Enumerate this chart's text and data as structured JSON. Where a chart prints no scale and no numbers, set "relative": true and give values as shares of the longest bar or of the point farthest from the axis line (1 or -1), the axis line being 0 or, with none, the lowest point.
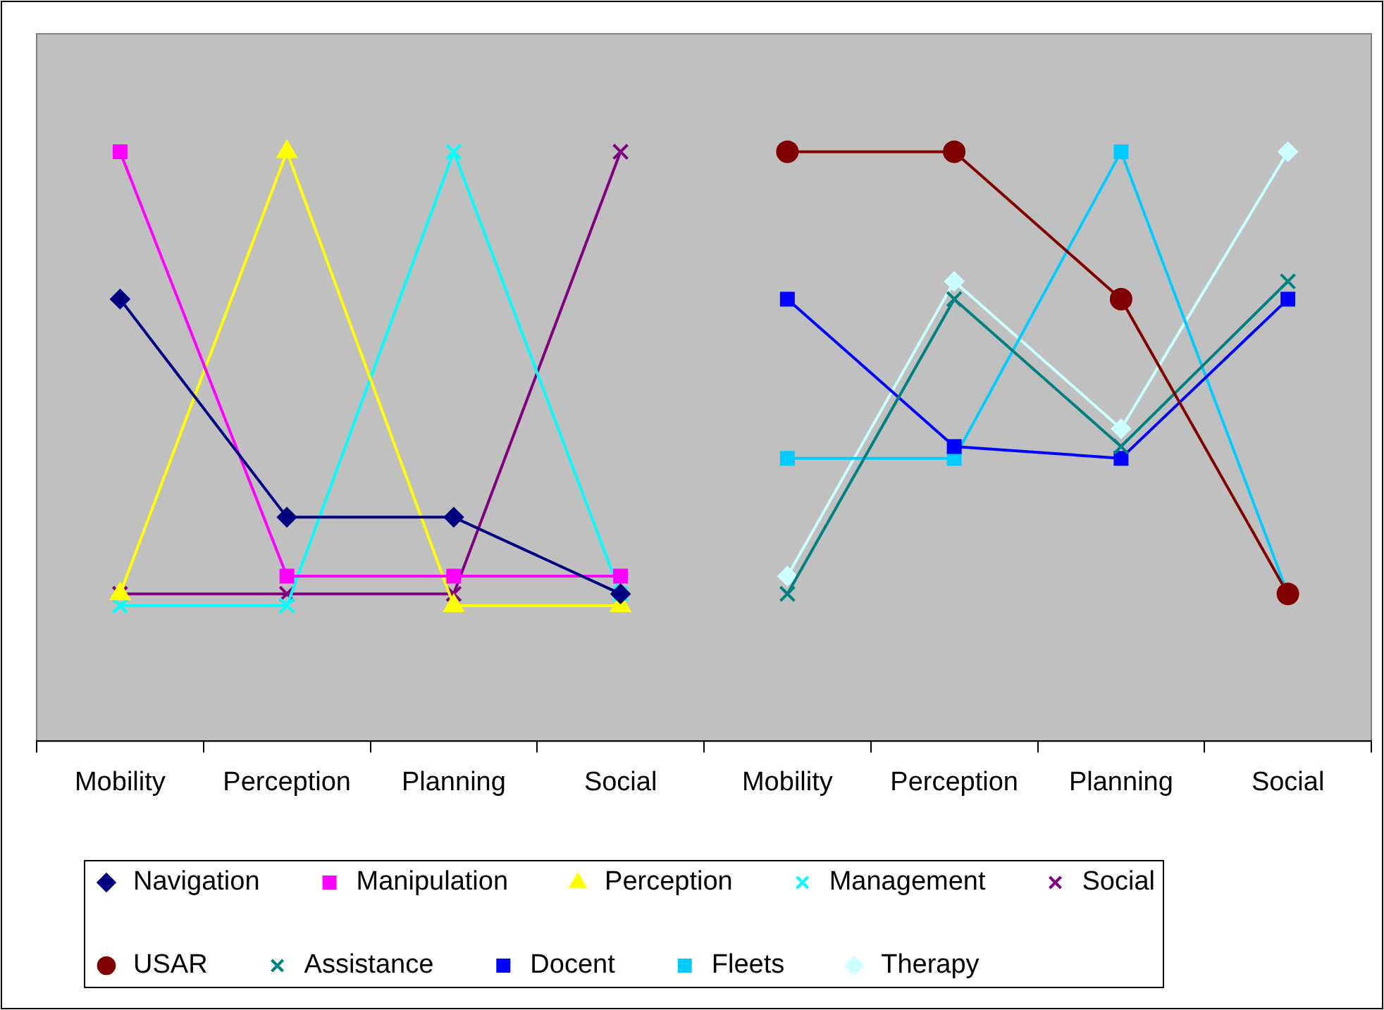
{
  "chart_data": {
    "type": "line",
    "relative": true,
    "categories": [
      "Mobility",
      "Perception",
      "Planning",
      "Social",
      "Mobility",
      "Perception",
      "Planning",
      "Social"
    ],
    "legend": "bottom",
    "grid": false,
    "series": [
      {
        "name": "Navigation",
        "color": "#000080",
        "marker": "diamond",
        "values": [
          0.75,
          0.38,
          0.38,
          0.25,
          null,
          null,
          null,
          null
        ]
      },
      {
        "name": "Manipulation",
        "color": "#ff00ff",
        "marker": "square",
        "values": [
          1,
          0.28,
          0.28,
          0.28,
          null,
          null,
          null,
          null
        ]
      },
      {
        "name": "Perception",
        "color": "#ffff00",
        "marker": "triangle",
        "values": [
          0.25,
          1,
          0.23,
          0.23,
          null,
          null,
          null,
          null
        ]
      },
      {
        "name": "Management",
        "color": "#00ffff",
        "marker": "cross",
        "values": [
          0.23,
          0.23,
          1,
          0.25,
          null,
          null,
          null,
          null
        ]
      },
      {
        "name": "Social",
        "color": "#800080",
        "marker": "cross",
        "values": [
          0.25,
          0.25,
          0.25,
          1,
          null,
          null,
          null,
          null
        ]
      },
      {
        "name": "USAR",
        "color": "#800000",
        "marker": "circle",
        "values": [
          null,
          null,
          null,
          null,
          1,
          1,
          0.75,
          0.25
        ]
      },
      {
        "name": "Assistance",
        "color": "#008080",
        "marker": "cross",
        "values": [
          null,
          null,
          null,
          null,
          0.25,
          0.75,
          0.5,
          0.78
        ]
      },
      {
        "name": "Docent",
        "color": "#0000ff",
        "marker": "square",
        "values": [
          null,
          null,
          null,
          null,
          0.75,
          0.5,
          0.48,
          0.75
        ]
      },
      {
        "name": "Fleets",
        "color": "#00ccff",
        "marker": "square",
        "values": [
          null,
          null,
          null,
          null,
          0.48,
          0.48,
          1,
          0.25
        ]
      },
      {
        "name": "Therapy",
        "color": "#ccffff",
        "marker": "diamond",
        "values": [
          null,
          null,
          null,
          null,
          0.28,
          0.78,
          0.53,
          1
        ]
      }
    ]
  }
}
